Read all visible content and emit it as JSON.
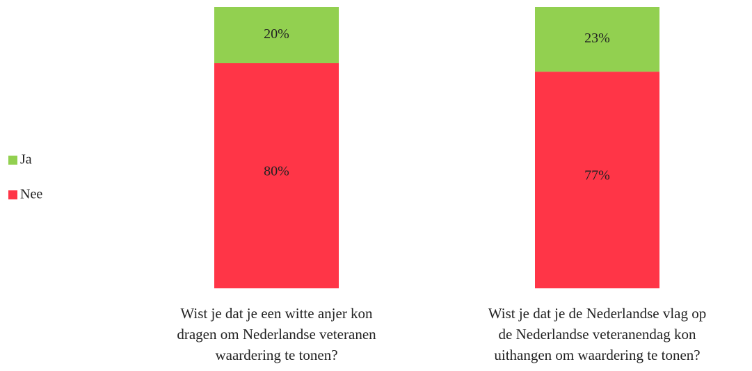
{
  "chart_data": {
    "type": "stacked_bar",
    "categories": [
      "Wist je dat je een witte anjer kon dragen om Nederlandse veteranen waardering te tonen?",
      "Wist je dat je de Nederlandse vlag op de Nederlandse veteranendag kon uithangen om waardering te tonen?"
    ],
    "series": [
      {
        "name": "Nee",
        "color": "#ff3547",
        "values": [
          80,
          77
        ],
        "value_labels": [
          "80%",
          "77%"
        ]
      },
      {
        "name": "Ja",
        "color": "#92d050",
        "values": [
          20,
          23
        ],
        "value_labels": [
          "20%",
          "23%"
        ]
      }
    ],
    "legend": "left"
  }
}
